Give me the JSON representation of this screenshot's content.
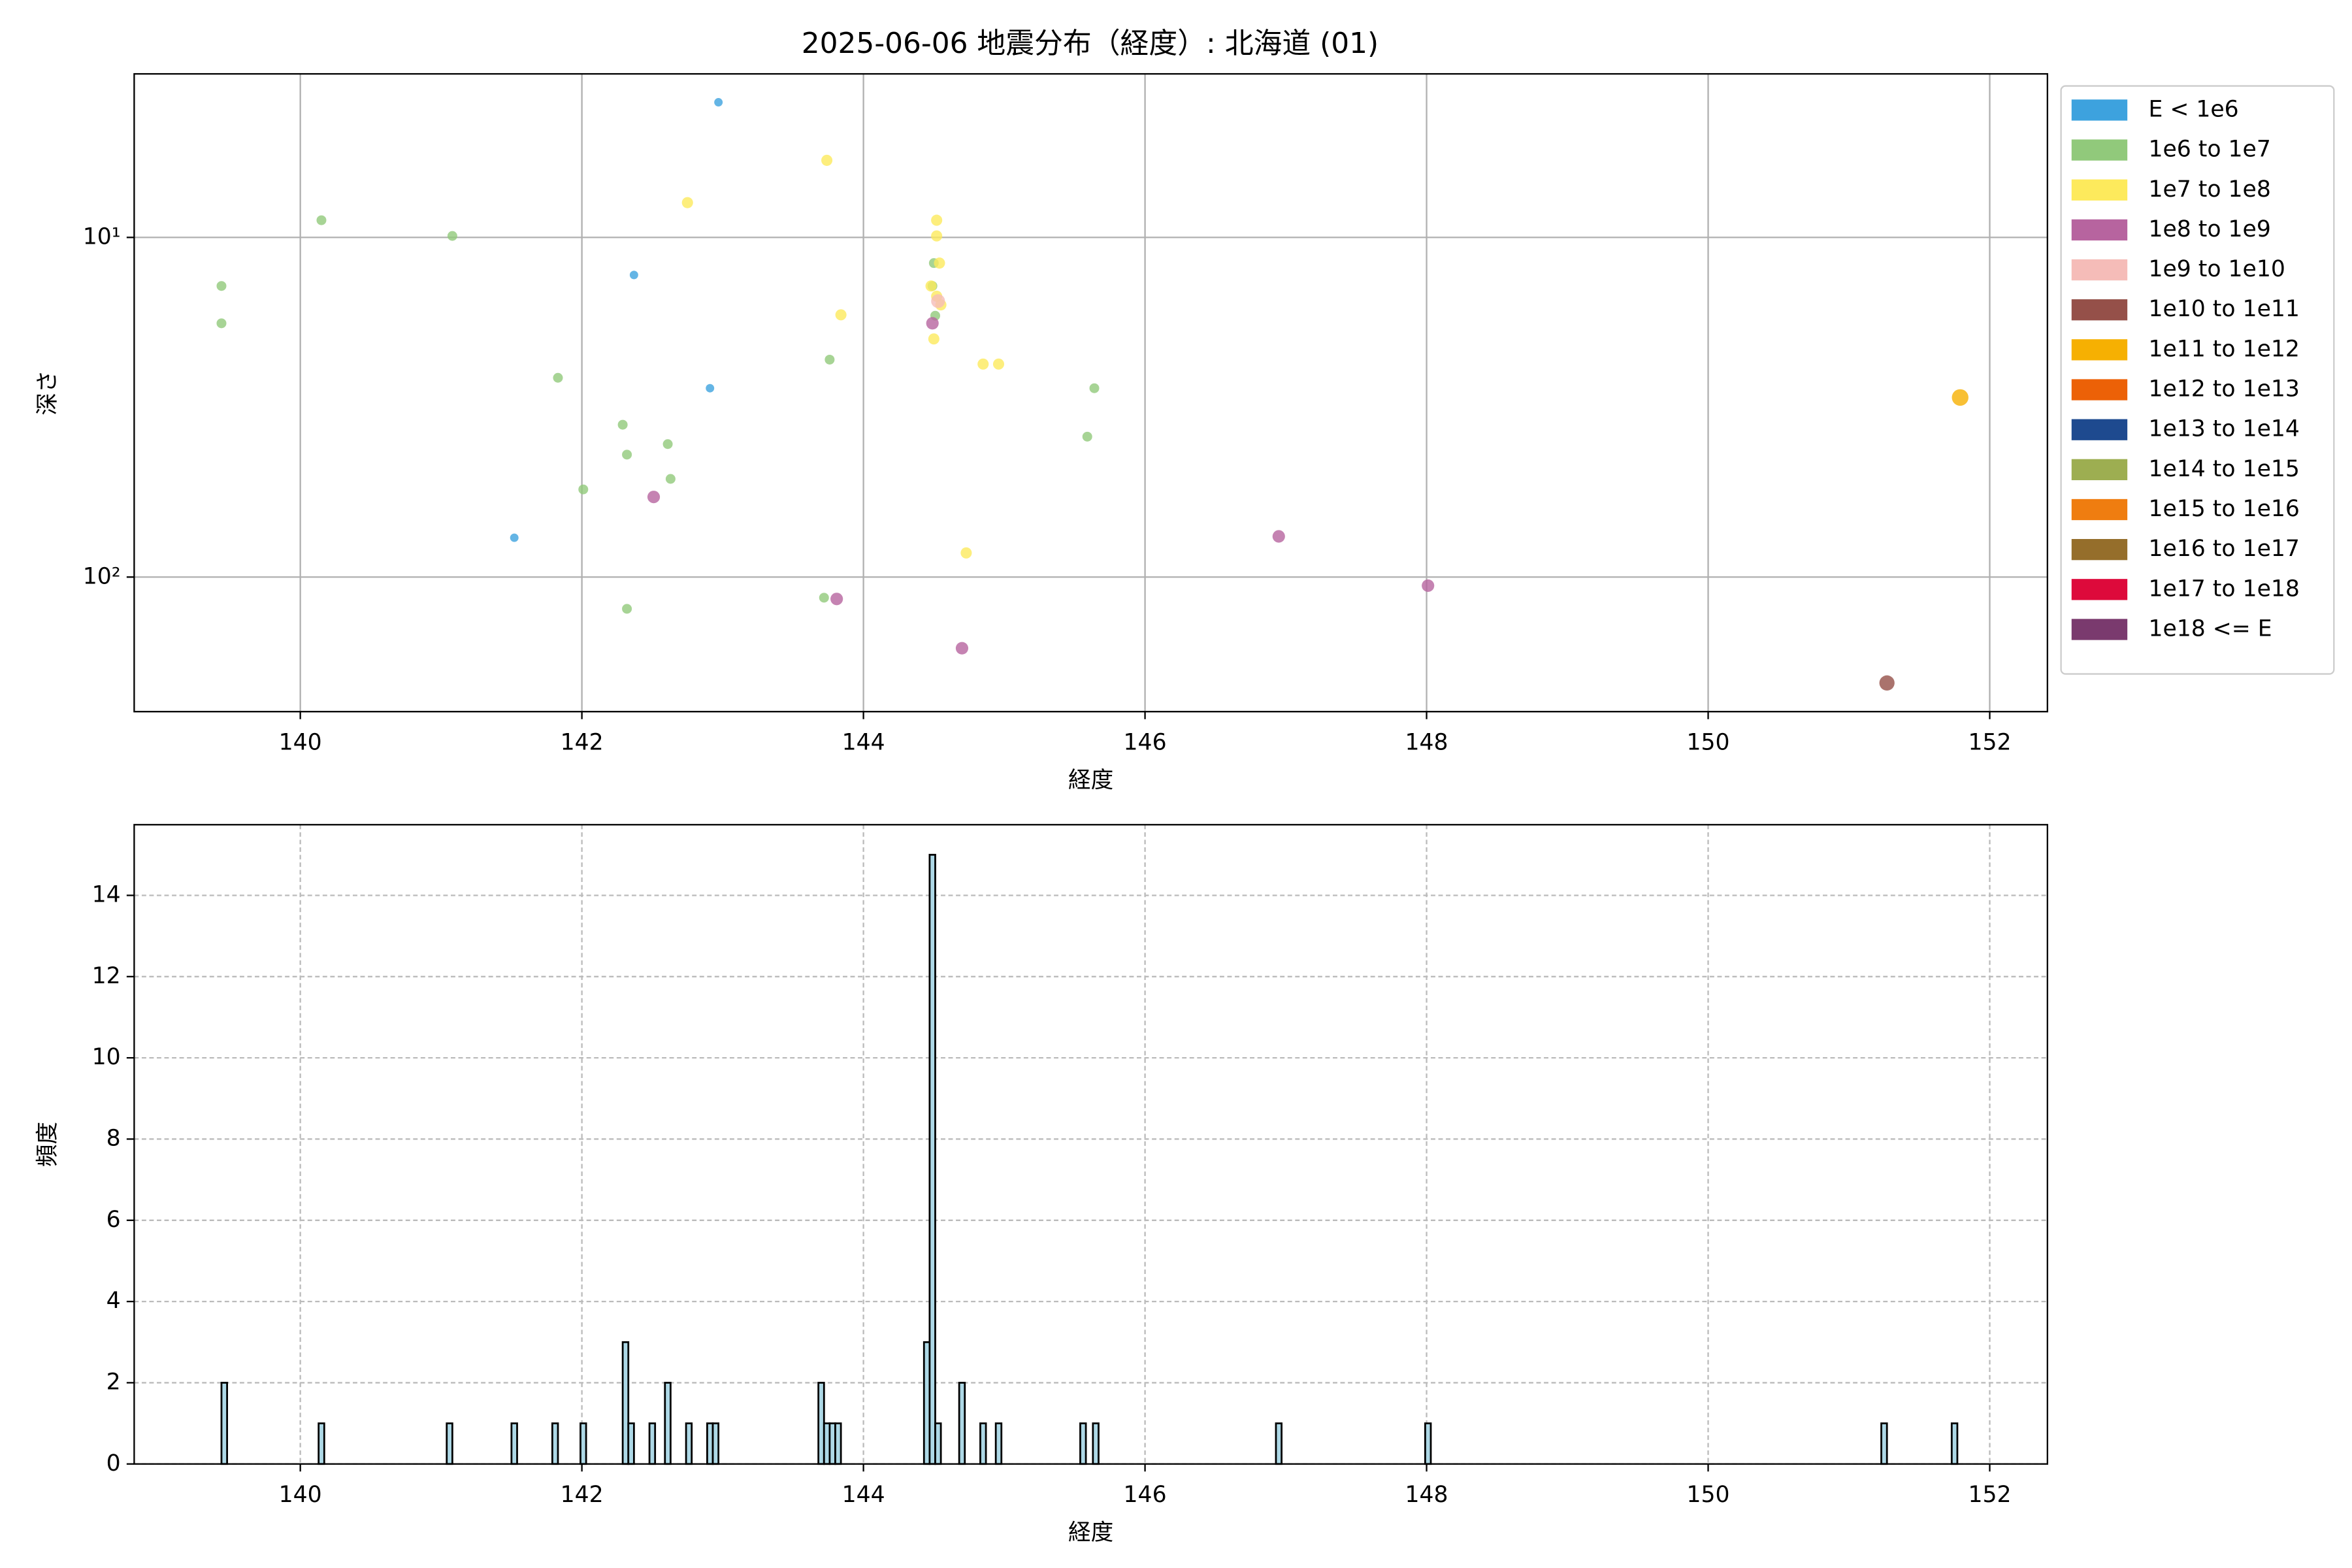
{
  "chart_data": [
    {
      "type": "scatter",
      "title": "2025-06-06 地震分布（経度）: 北海道 (01)",
      "x_label": "経度",
      "y_label": "深さ",
      "yscale": "log",
      "xlim": [
        138.82,
        152.41
      ],
      "ylim": [
        249,
        3.3
      ],
      "xticks": [
        140,
        142,
        144,
        146,
        148,
        150,
        152
      ],
      "yticks": [
        {
          "value": 10,
          "label": "10¹"
        },
        {
          "value": 100,
          "label": "10²"
        }
      ],
      "grid": true,
      "grid_style": "solid",
      "legend": "outside upper right",
      "series": [
        {
          "name": "E < 1e6",
          "color": "#3da2de",
          "x": [
            142.97,
            142.37,
            142.91,
            141.52
          ],
          "values": [
            4.0,
            12.9,
            27.8,
            76.6
          ]
        },
        {
          "name": "1e6 to 1e7",
          "color": "#91c97b",
          "x": [
            139.44,
            139.44,
            140.15,
            141.08,
            141.83,
            142.29,
            142.32,
            142.61,
            142.63,
            142.01,
            142.32,
            143.76,
            143.72,
            144.5,
            144.49,
            144.51,
            145.64,
            145.59
          ],
          "values": [
            13.9,
            17.9,
            8.9,
            9.9,
            25.9,
            35.6,
            43.6,
            40.6,
            51.4,
            55.2,
            124,
            22.9,
            115,
            11.9,
            13.9,
            17.0,
            27.8,
            38.6
          ]
        },
        {
          "name": "1e7 to 1e8",
          "color": "#fdea5c",
          "x": [
            143.74,
            142.75,
            144.52,
            144.52,
            144.54,
            144.48,
            144.52,
            144.55,
            143.84,
            144.5,
            144.85,
            144.96,
            144.73
          ],
          "values": [
            5.93,
            7.9,
            8.9,
            9.9,
            11.9,
            13.9,
            14.9,
            15.8,
            16.9,
            19.9,
            23.6,
            23.6,
            84.9
          ]
        },
        {
          "name": "1e8 to 1e9",
          "color": "#b7649f",
          "x": [
            144.49,
            142.51,
            143.81,
            144.7,
            146.95,
            148.01
          ],
          "values": [
            17.9,
            58.1,
            116,
            162,
            75.9,
            106
          ]
        },
        {
          "name": "1e9 to 1e10",
          "color": "#f5bcb8",
          "x": [
            144.53
          ],
          "values": [
            15.4
          ]
        },
        {
          "name": "1e10 to 1e11",
          "color": "#955049",
          "x": [
            151.27
          ],
          "values": [
            205
          ]
        },
        {
          "name": "1e11 to 1e12",
          "color": "#f6b002",
          "x": [
            151.79
          ],
          "values": [
            29.6
          ]
        },
        {
          "name": "1e12 to 1e13",
          "color": "#ec6107",
          "x": [],
          "values": []
        },
        {
          "name": "1e13 to 1e14",
          "color": "#1e4a8f",
          "x": [],
          "values": []
        },
        {
          "name": "1e14 to 1e15",
          "color": "#9dae51",
          "x": [],
          "values": []
        },
        {
          "name": "1e15 to 1e16",
          "color": "#ef7d10",
          "x": [],
          "values": []
        },
        {
          "name": "1e16 to 1e17",
          "color": "#956e2b",
          "x": [],
          "values": []
        },
        {
          "name": "1e17 to 1e18",
          "color": "#dd0a3b",
          "x": [],
          "values": []
        },
        {
          "name": "1e18 <= E",
          "color": "#7a3a6e",
          "x": [],
          "values": []
        }
      ]
    },
    {
      "type": "histogram",
      "x_label": "経度",
      "y_label": "頻度",
      "color": "#add8e6",
      "xlim": [
        138.82,
        152.41
      ],
      "ylim": [
        0,
        15.74
      ],
      "xticks": [
        140,
        142,
        144,
        146,
        148,
        150,
        152
      ],
      "yticks": [
        0,
        2,
        4,
        6,
        8,
        10,
        12,
        14
      ],
      "grid": true,
      "grid_style": "dashed",
      "bins": [
        139.44,
        139.48,
        140.13,
        140.17,
        141.04,
        141.08,
        141.5,
        141.54,
        141.79,
        141.83,
        141.99,
        142.03,
        142.29,
        142.33,
        142.37,
        142.48,
        142.52,
        142.59,
        142.63,
        142.74,
        142.78,
        142.89,
        142.93,
        142.97,
        143.68,
        143.72,
        143.76,
        143.8,
        143.84,
        144.43,
        144.47,
        144.51,
        144.55,
        144.68,
        144.72,
        144.83,
        144.87,
        144.94,
        144.98,
        145.54,
        145.58,
        145.63,
        145.67,
        146.93,
        146.97,
        147.99,
        148.03,
        151.23,
        151.27,
        151.73,
        151.77
      ],
      "values": [
        2,
        0,
        1,
        0,
        1,
        0,
        1,
        0,
        1,
        0,
        1,
        0,
        3,
        1,
        0,
        1,
        0,
        2,
        0,
        1,
        0,
        1,
        1,
        0,
        2,
        1,
        1,
        1,
        0,
        3,
        15,
        1,
        0,
        2,
        0,
        1,
        0,
        1,
        0,
        1,
        0,
        1,
        0,
        1,
        0,
        1,
        0,
        1,
        0,
        1
      ]
    }
  ]
}
